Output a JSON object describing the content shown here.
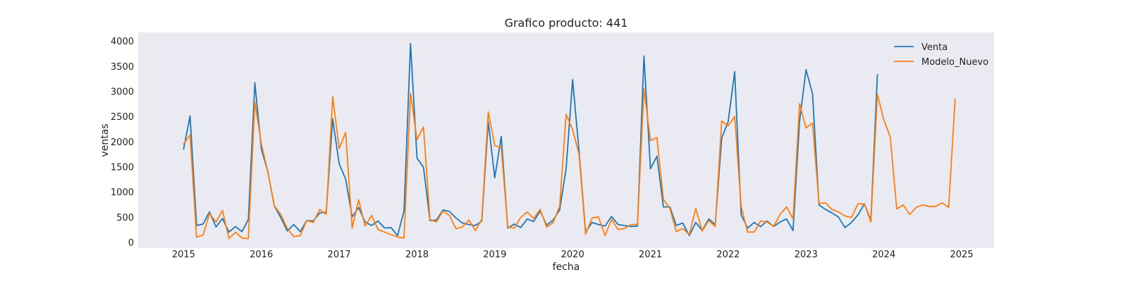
{
  "chart_data": {
    "type": "line",
    "title": "Grafico producto: 441",
    "xlabel": "fecha",
    "ylabel": "ventas",
    "x_start": "2015-01",
    "x_tick_labels": [
      "2015",
      "2016",
      "2017",
      "2018",
      "2019",
      "2020",
      "2021",
      "2022",
      "2023",
      "2024",
      "2025"
    ],
    "y_ticks": [
      0,
      500,
      1000,
      1500,
      2000,
      2500,
      3000,
      3500,
      4000
    ],
    "xlim": [
      "2014-06",
      "2025-06"
    ],
    "ylim": [
      -120,
      4170
    ],
    "grid": false,
    "legend_position": "top-right",
    "series": [
      {
        "name": "Venta",
        "color": "#1f77b4",
        "values": [
          1850,
          2510,
          330,
          360,
          600,
          300,
          470,
          200,
          310,
          210,
          450,
          3170,
          1850,
          1400,
          720,
          490,
          220,
          350,
          210,
          430,
          420,
          580,
          600,
          2450,
          1560,
          1250,
          500,
          690,
          400,
          330,
          420,
          280,
          290,
          130,
          620,
          3950,
          1670,
          1490,
          430,
          440,
          640,
          610,
          480,
          380,
          350,
          330,
          420,
          2400,
          1280,
          2100,
          280,
          360,
          290,
          460,
          410,
          620,
          340,
          440,
          640,
          1460,
          3230,
          1800,
          200,
          390,
          350,
          320,
          510,
          350,
          330,
          310,
          320,
          3700,
          1460,
          1710,
          700,
          700,
          330,
          380,
          130,
          390,
          230,
          460,
          350,
          2070,
          2400,
          3390,
          540,
          280,
          390,
          310,
          420,
          310,
          400,
          460,
          230,
          2400,
          3430,
          2950,
          740,
          650,
          580,
          500,
          290,
          390,
          540,
          760,
          430,
          3330
        ]
      },
      {
        "name": "Modelo_Nuevo",
        "color": "#ff7f0e",
        "values": [
          1950,
          2130,
          100,
          140,
          570,
          400,
          630,
          70,
          200,
          80,
          70,
          2790,
          1950,
          1400,
          720,
          550,
          270,
          110,
          130,
          430,
          390,
          650,
          550,
          2890,
          1860,
          2180,
          280,
          840,
          320,
          530,
          250,
          200,
          150,
          100,
          80,
          2960,
          2040,
          2290,
          450,
          400,
          620,
          530,
          270,
          300,
          440,
          230,
          450,
          2590,
          1920,
          1880,
          300,
          280,
          490,
          600,
          470,
          650,
          300,
          390,
          710,
          2540,
          2240,
          1740,
          160,
          480,
          500,
          130,
          450,
          250,
          270,
          350,
          350,
          3050,
          2020,
          2080,
          850,
          670,
          210,
          270,
          150,
          670,
          220,
          430,
          310,
          2410,
          2310,
          2500,
          710,
          200,
          200,
          420,
          400,
          310,
          550,
          700,
          460,
          2750,
          2270,
          2370,
          770,
          780,
          650,
          600,
          520,
          490,
          760,
          760,
          400,
          2940,
          2430,
          2090,
          660,
          740,
          550,
          690,
          740,
          710,
          710,
          780,
          690,
          2850
        ]
      }
    ]
  }
}
